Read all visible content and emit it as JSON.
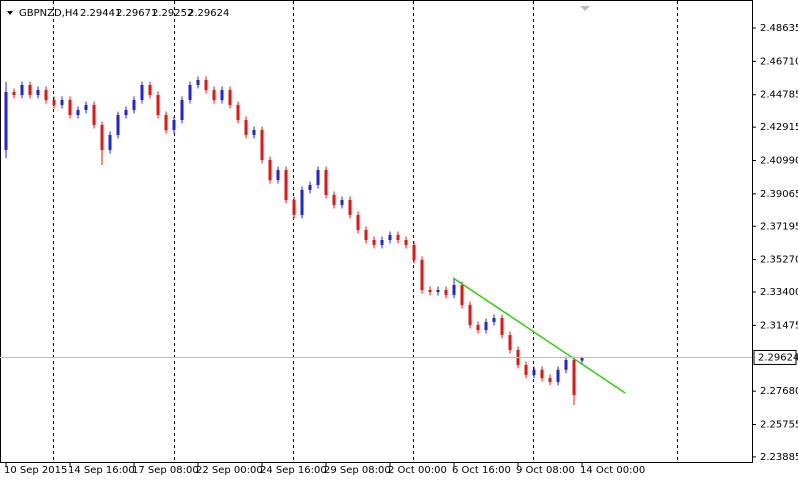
{
  "chart_data": {
    "type": "candlestick",
    "title": "GBPNZD,H4",
    "categories": [
      "10 Sep 2015",
      null,
      null,
      null,
      null,
      null,
      null,
      null,
      "14 Sep 16:00",
      null,
      null,
      null,
      null,
      null,
      null,
      null,
      "17 Sep 08:00",
      null,
      null,
      null,
      null,
      null,
      null,
      null,
      "22 Sep 00:00",
      null,
      null,
      null,
      null,
      null,
      null,
      null,
      "24 Sep 16:00",
      null,
      null,
      null,
      null,
      null,
      null,
      null,
      "29 Sep 08:00",
      null,
      null,
      null,
      null,
      null,
      null,
      null,
      "2 Oct 00:00",
      null,
      null,
      null,
      null,
      null,
      null,
      null,
      "6 Oct 16:00",
      null,
      null,
      null,
      null,
      null,
      null,
      null,
      "9 Oct 08:00",
      null,
      null,
      null,
      null,
      null,
      null,
      null,
      "14 Oct 00:00"
    ],
    "open": [
      2.41596,
      2.44943,
      2.44769,
      2.45346,
      2.44769,
      2.45058,
      2.44481,
      2.44193,
      2.44481,
      2.43616,
      2.43904,
      2.44193,
      2.43039,
      2.41596,
      2.42462,
      2.43616,
      2.43904,
      2.44481,
      2.45346,
      2.44769,
      2.43616,
      2.4275,
      2.43327,
      2.44481,
      2.45346,
      2.45635,
      2.45058,
      2.44481,
      2.45058,
      2.44193,
      2.43327,
      2.42462,
      2.4275,
      2.41019,
      2.39865,
      2.40442,
      2.38711,
      2.37846,
      2.39288,
      2.39576,
      2.40442,
      2.38999,
      2.38423,
      2.38711,
      2.37846,
      2.3698,
      2.36403,
      2.36115,
      2.36403,
      2.36692,
      2.36403,
      2.36115,
      2.35249,
      2.33518,
      2.33403,
      2.33518,
      2.3323,
      2.33806,
      2.32653,
      2.31498,
      2.3121,
      2.31672,
      2.31901,
      2.30922,
      2.30056,
      2.29191,
      2.28614,
      2.28913,
      2.2844,
      2.2821,
      2.28913,
      2.29479,
      2.29441
    ],
    "high": [
      2.4552,
      2.45143,
      2.45546,
      2.45546,
      2.45258,
      2.45258,
      2.44681,
      2.44681,
      2.44681,
      2.44104,
      2.44393,
      2.44393,
      2.43239,
      2.42662,
      2.43816,
      2.44104,
      2.44681,
      2.45546,
      2.45546,
      2.44969,
      2.43816,
      2.43527,
      2.44681,
      2.45546,
      2.45835,
      2.45835,
      2.45258,
      2.45258,
      2.45258,
      2.44393,
      2.43527,
      2.4295,
      2.4295,
      2.41219,
      2.40642,
      2.40642,
      2.38911,
      2.39488,
      2.39776,
      2.40642,
      2.40642,
      2.39199,
      2.38911,
      2.38911,
      2.38046,
      2.3718,
      2.36603,
      2.36603,
      2.36892,
      2.36892,
      2.36603,
      2.36315,
      2.35449,
      2.33718,
      2.33718,
      2.33718,
      2.34209,
      2.34006,
      2.32853,
      2.31698,
      2.31872,
      2.32101,
      2.32101,
      2.31122,
      2.30256,
      2.29391,
      2.29113,
      2.29113,
      2.2864,
      2.29113,
      2.29679,
      2.29679,
      2.29671
    ],
    "low": [
      2.41135,
      2.44569,
      2.44569,
      2.44569,
      2.44569,
      2.44281,
      2.43993,
      2.43993,
      2.43416,
      2.43416,
      2.43704,
      2.42839,
      2.40731,
      2.41396,
      2.42262,
      2.43416,
      2.43704,
      2.44281,
      2.44569,
      2.43416,
      2.4255,
      2.4255,
      2.43127,
      2.44281,
      2.45146,
      2.44858,
      2.44281,
      2.44281,
      2.43993,
      2.43127,
      2.42262,
      2.42262,
      2.40819,
      2.39665,
      2.39665,
      2.38511,
      2.37646,
      2.37646,
      2.39088,
      2.39376,
      2.38799,
      2.38223,
      2.38223,
      2.37646,
      2.3678,
      2.36203,
      2.35915,
      2.35915,
      2.36203,
      2.36203,
      2.35915,
      2.35049,
      2.33318,
      2.33203,
      2.33203,
      2.3303,
      2.3303,
      2.32453,
      2.31298,
      2.3101,
      2.3101,
      2.31472,
      2.30722,
      2.29856,
      2.28991,
      2.28414,
      2.28414,
      2.2824,
      2.2801,
      2.2801,
      2.28713,
      2.26882,
      2.29252
    ],
    "close": [
      2.44943,
      2.44769,
      2.45346,
      2.44769,
      2.45058,
      2.44481,
      2.44193,
      2.44481,
      2.43616,
      2.43904,
      2.44193,
      2.43039,
      2.41596,
      2.42462,
      2.43616,
      2.43904,
      2.44481,
      2.45346,
      2.44769,
      2.43616,
      2.4275,
      2.43327,
      2.44481,
      2.45346,
      2.45635,
      2.45058,
      2.44481,
      2.45058,
      2.44193,
      2.43327,
      2.42462,
      2.4275,
      2.41019,
      2.39865,
      2.40442,
      2.38711,
      2.37846,
      2.39288,
      2.39576,
      2.40442,
      2.38999,
      2.38423,
      2.38711,
      2.37846,
      2.3698,
      2.36403,
      2.36115,
      2.36403,
      2.36692,
      2.36403,
      2.36115,
      2.35249,
      2.33518,
      2.33403,
      2.33518,
      2.3323,
      2.33806,
      2.32653,
      2.31498,
      2.3121,
      2.31672,
      2.31901,
      2.30922,
      2.30056,
      2.29191,
      2.28614,
      2.28913,
      2.2844,
      2.2821,
      2.28913,
      2.29479,
      2.27459,
      2.29624
    ],
    "up_color": "#2222dd",
    "down_color": "#ee1111",
    "ylim": [
      2.23534,
      2.50251
    ],
    "yticks": [
      2.48635,
      {
        "value": 2.4671,
        "label": "2.46710"
      },
      2.44785,
      2.42915,
      {
        "value": 2.4099,
        "label": "2.40990"
      },
      2.39065,
      2.37195,
      {
        "value": 2.3527,
        "label": "2.35270"
      },
      {
        "value": 2.334,
        "label": "2.33400"
      },
      2.31475,
      {
        "value": 2.2768,
        "label": "2.27680"
      },
      2.25755,
      2.23885
    ],
    "trendline": {
      "x": [
        55.9,
        77.4
      ],
      "y": [
        2.34209,
        2.27573
      ],
      "color": "#33cc11"
    }
  }
}
